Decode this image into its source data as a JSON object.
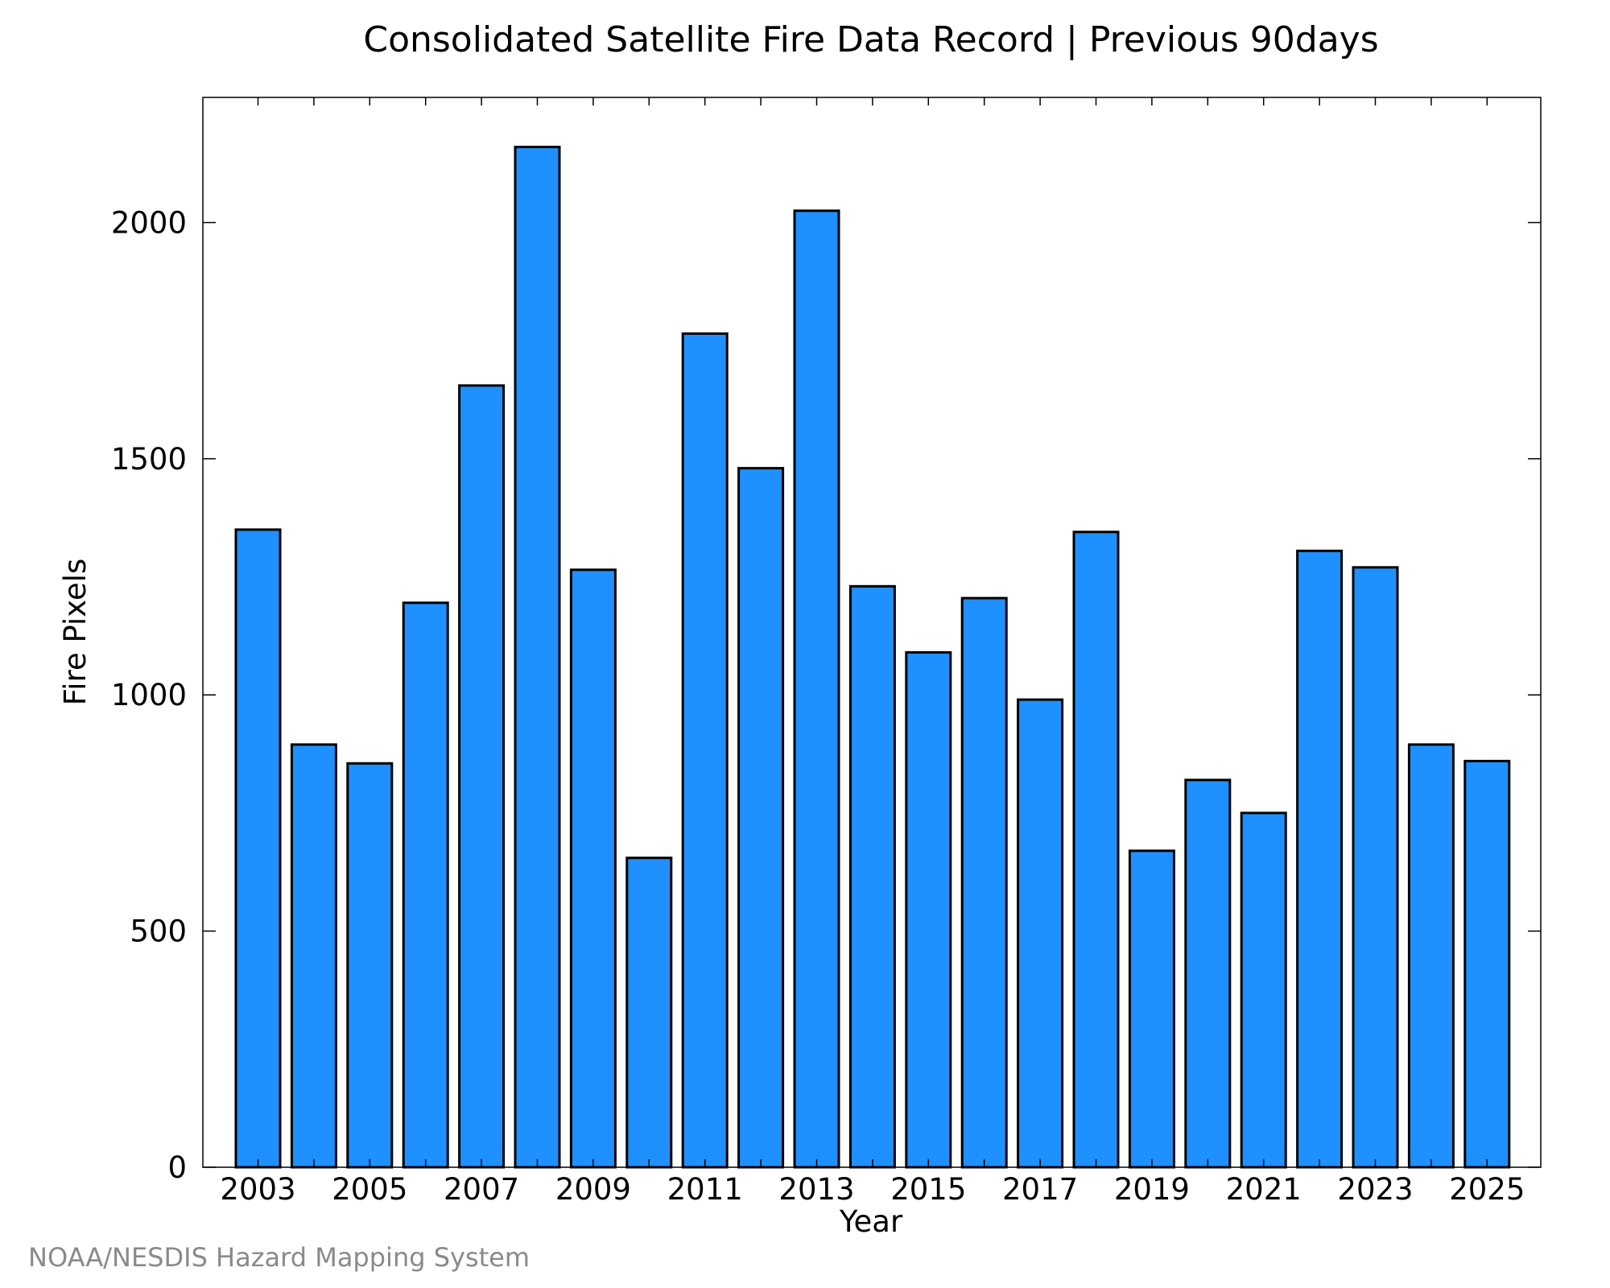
{
  "chart_data": {
    "type": "bar",
    "title": "Consolidated Satellite Fire Data Record | Previous 90days",
    "xlabel": "Year",
    "ylabel": "Fire Pixels",
    "categories": [
      "2003",
      "2004",
      "2005",
      "2006",
      "2007",
      "2008",
      "2009",
      "2010",
      "2011",
      "2012",
      "2013",
      "2014",
      "2015",
      "2016",
      "2017",
      "2018",
      "2019",
      "2020",
      "2021",
      "2022",
      "2023",
      "2024",
      "2025"
    ],
    "x_tick_labels": [
      "2003",
      "2005",
      "2007",
      "2009",
      "2011",
      "2013",
      "2015",
      "2017",
      "2019",
      "2021",
      "2023",
      "2025"
    ],
    "values": [
      1350,
      895,
      855,
      1195,
      1655,
      2160,
      1265,
      655,
      1765,
      1480,
      2025,
      1230,
      1090,
      1205,
      990,
      1345,
      670,
      820,
      750,
      1305,
      1270,
      895,
      860
    ],
    "y_ticks": [
      0,
      500,
      1000,
      1500,
      2000
    ],
    "ylim": [
      0,
      2265
    ],
    "grid": false,
    "bar_color": "#1e90ff",
    "bar_edge_color": "#000000"
  },
  "footer": {
    "credit": "NOAA/NESDIS Hazard Mapping System"
  }
}
